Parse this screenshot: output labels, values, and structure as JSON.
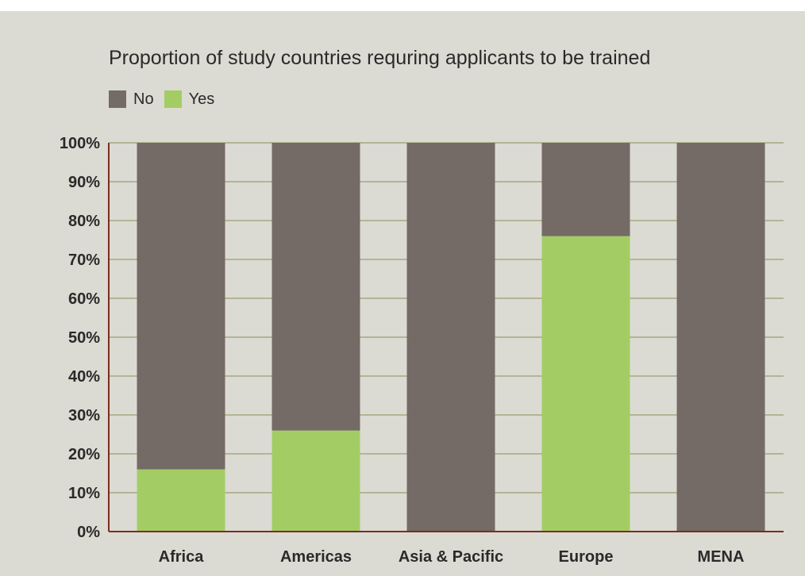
{
  "chart_data": {
    "type": "bar",
    "stacked": true,
    "title": "Proportion of study countries requring applicants to be trained",
    "xlabel": "",
    "ylabel": "",
    "categories": [
      "Africa",
      "Americas",
      "Asia & Pacific",
      "Europe",
      "MENA"
    ],
    "series": [
      {
        "name": "Yes",
        "color": "#a3cd64",
        "values": [
          16,
          26,
          0,
          76,
          0
        ]
      },
      {
        "name": "No",
        "color": "#746a66",
        "values": [
          84,
          74,
          100,
          24,
          100
        ]
      }
    ],
    "legend": {
      "position": "top-left",
      "items": [
        {
          "label": "No",
          "color": "#746a66"
        },
        {
          "label": "Yes",
          "color": "#a3cd64"
        }
      ]
    },
    "ylim": [
      0,
      100
    ],
    "yticks": [
      "0%",
      "10%",
      "20%",
      "30%",
      "40%",
      "50%",
      "60%",
      "70%",
      "80%",
      "90%",
      "100%"
    ],
    "grid": true,
    "colors": {
      "background": "#dbdbd3",
      "axis": "#7b2e1f",
      "gridline": "#8c8c5a",
      "text": "#2a2a2a"
    }
  }
}
